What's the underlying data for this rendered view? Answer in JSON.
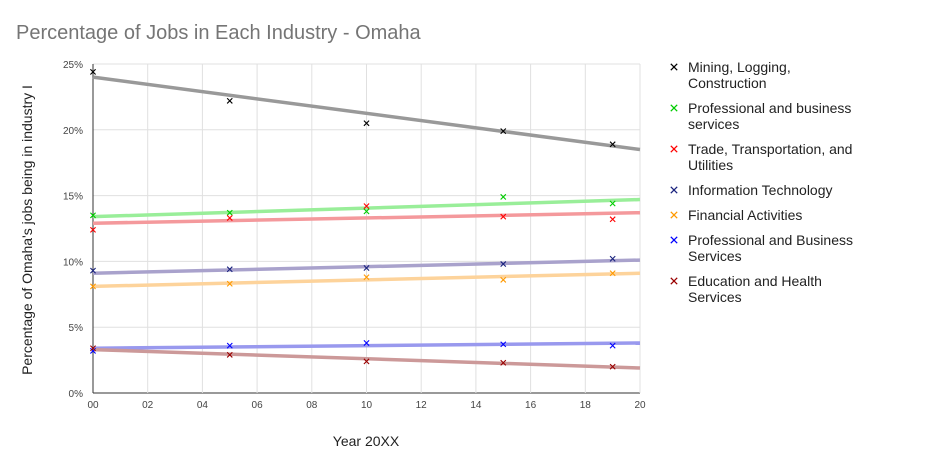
{
  "chart_data": {
    "type": "scatter",
    "title": "Percentage of Jobs in Each Industry - Omaha",
    "xlabel": "Year 20XX",
    "ylabel": "Percentage of Omaha's jobs being in industry I",
    "xlim": [
      0,
      20
    ],
    "ylim": [
      0,
      25
    ],
    "x_ticks": [
      "00",
      "02",
      "04",
      "06",
      "08",
      "10",
      "12",
      "14",
      "16",
      "18",
      "20"
    ],
    "y_ticks": [
      "0%",
      "5%",
      "10%",
      "15%",
      "20%",
      "25%"
    ],
    "grid": true,
    "legend": "right",
    "trendlines": true,
    "x": [
      0,
      5,
      10,
      15,
      19
    ],
    "series": [
      {
        "name": "Mining, Logging, Construction",
        "marker_color": "#000000",
        "trend_color": "#999999",
        "points": [
          [
            0,
            24.4
          ],
          [
            5,
            22.2
          ],
          [
            10,
            20.5
          ],
          [
            15,
            19.9
          ],
          [
            19,
            18.9
          ]
        ],
        "trend": [
          24.0,
          18.5
        ]
      },
      {
        "name": "Professional and business services",
        "marker_color": "#00cc00",
        "trend_color": "#99ee99",
        "points": [
          [
            0,
            13.5
          ],
          [
            5,
            13.7
          ],
          [
            10,
            13.8
          ],
          [
            15,
            14.9
          ],
          [
            19,
            14.4
          ]
        ],
        "trend": [
          13.4,
          14.7
        ]
      },
      {
        "name": "Trade, Transportation, and Utilities",
        "marker_color": "#ff0000",
        "trend_color": "#f4999c",
        "points": [
          [
            0,
            12.4
          ],
          [
            5,
            13.3
          ],
          [
            10,
            14.2
          ],
          [
            15,
            13.4
          ],
          [
            19,
            13.2
          ]
        ],
        "trend": [
          12.9,
          13.7
        ]
      },
      {
        "name": "Information Technology",
        "marker_color": "#1a237e",
        "trend_color": "#a9a2cc",
        "points": [
          [
            0,
            9.3
          ],
          [
            5,
            9.4
          ],
          [
            10,
            9.5
          ],
          [
            15,
            9.8
          ],
          [
            19,
            10.2
          ]
        ],
        "trend": [
          9.1,
          10.1
        ]
      },
      {
        "name": "Financial Activities",
        "marker_color": "#ff9900",
        "trend_color": "#fdd39b",
        "points": [
          [
            0,
            8.1
          ],
          [
            5,
            8.3
          ],
          [
            10,
            8.8
          ],
          [
            15,
            8.6
          ],
          [
            19,
            9.1
          ]
        ],
        "trend": [
          8.1,
          9.1
        ]
      },
      {
        "name": "Professional and Business Services",
        "marker_color": "#0000ff",
        "trend_color": "#9999ee",
        "points": [
          [
            0,
            3.2
          ],
          [
            5,
            3.6
          ],
          [
            10,
            3.8
          ],
          [
            15,
            3.7
          ],
          [
            19,
            3.6
          ]
        ],
        "trend": [
          3.4,
          3.8
        ]
      },
      {
        "name": "Education and Health Services",
        "marker_color": "#990000",
        "trend_color": "#cc9999",
        "points": [
          [
            0,
            3.4
          ],
          [
            5,
            2.9
          ],
          [
            10,
            2.4
          ],
          [
            15,
            2.3
          ],
          [
            19,
            2.0
          ]
        ],
        "trend": [
          3.3,
          1.9
        ]
      }
    ]
  }
}
